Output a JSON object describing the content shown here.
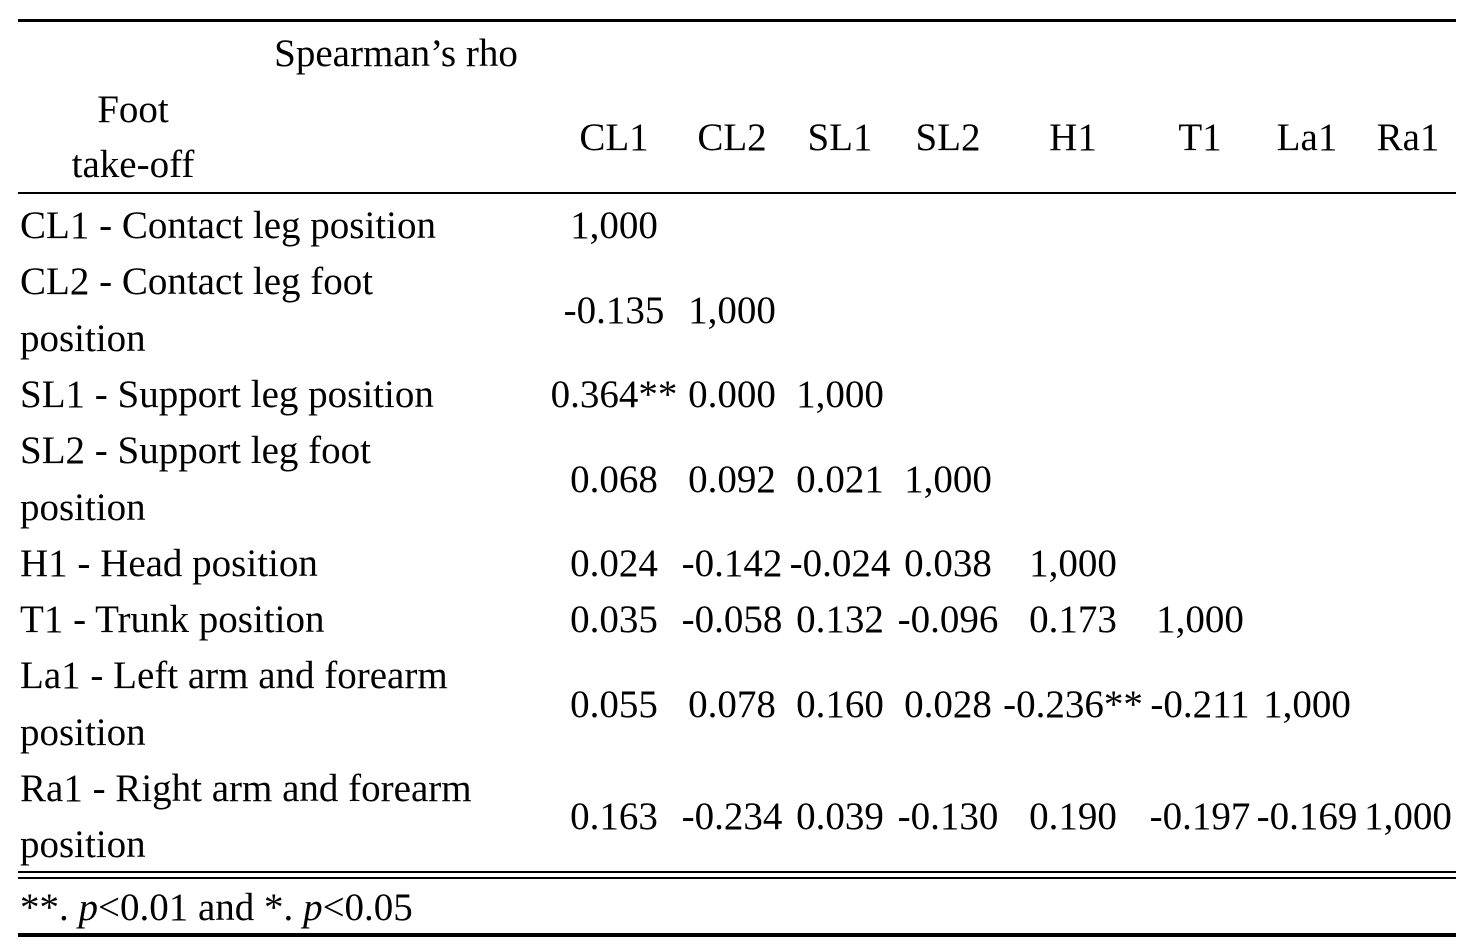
{
  "table": {
    "corner": {
      "title": "Spearman’s rho",
      "row_header": [
        "Foot",
        "take-off"
      ]
    },
    "columns": [
      "CL1",
      "CL2",
      "SL1",
      "SL2",
      "H1",
      "T1",
      "La1",
      "Ra1"
    ],
    "rows": [
      {
        "label": [
          "CL1 - Contact leg position"
        ],
        "values": [
          "1,000"
        ]
      },
      {
        "label": [
          "CL2 - Contact leg foot",
          "position"
        ],
        "values": [
          "-0.135",
          "1,000"
        ]
      },
      {
        "label": [
          "SL1 - Support leg position"
        ],
        "values": [
          "0.364**",
          "0.000",
          "1,000"
        ]
      },
      {
        "label": [
          "SL2 - Support leg foot",
          "position"
        ],
        "values": [
          "0.068",
          "0.092",
          "0.021",
          "1,000"
        ]
      },
      {
        "label": [
          "H1 - Head position"
        ],
        "values": [
          "0.024",
          "-0.142",
          "-0.024",
          "0.038",
          "1,000"
        ]
      },
      {
        "label": [
          "T1 - Trunk position"
        ],
        "values": [
          "0.035",
          "-0.058",
          "0.132",
          "-0.096",
          "0.173",
          "1,000"
        ]
      },
      {
        "label": [
          "La1 - Left arm and forearm",
          "position"
        ],
        "values": [
          "0.055",
          "0.078",
          "0.160",
          "0.028",
          "-0.236**",
          "-0.211",
          "1,000"
        ]
      },
      {
        "label": [
          "Ra1 - Right arm and forearm",
          "position"
        ],
        "values": [
          "0.163",
          "-0.234",
          "0.039",
          "-0.130",
          "0.190",
          "-0.197",
          "-0.169",
          "1,000"
        ]
      }
    ],
    "footnote": [
      "**. ",
      "p",
      "<0.01 and *. ",
      "p",
      "<0.05"
    ]
  }
}
